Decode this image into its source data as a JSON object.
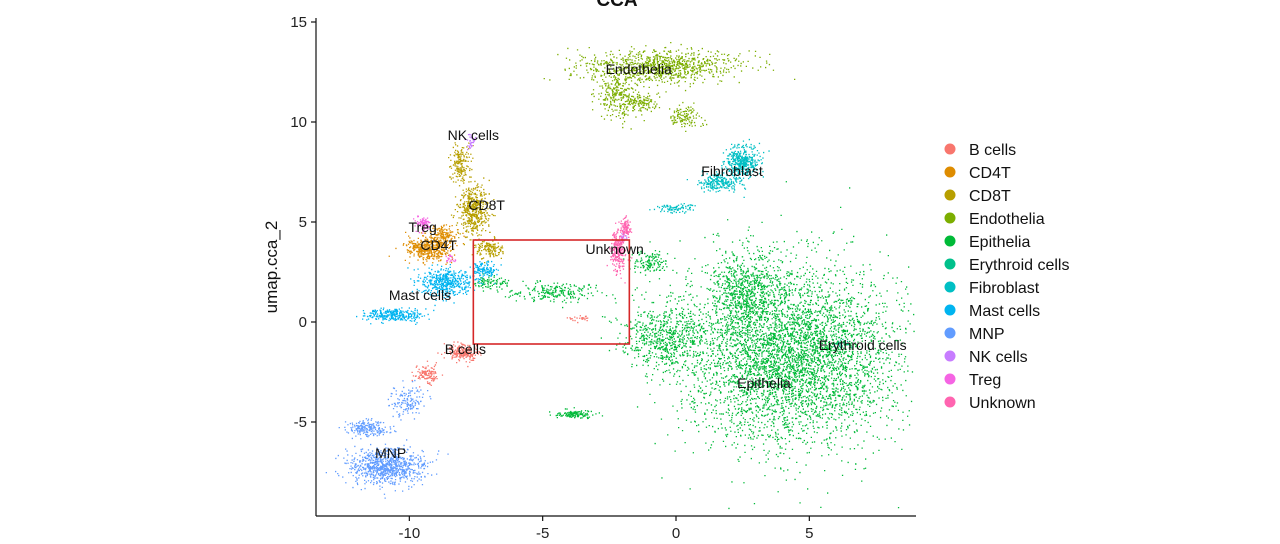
{
  "chart_data": {
    "type": "scatter",
    "title": "CCA",
    "xlabel": "",
    "ylabel": "umap.cca_2",
    "xlim": [
      -13.5,
      9
    ],
    "ylim": [
      -9.7,
      15.2
    ],
    "x_ticks": [
      -10,
      -5,
      0,
      5
    ],
    "y_ticks": [
      -5,
      0,
      5,
      10,
      15
    ],
    "grid": false,
    "legend_position": "right",
    "highlight_box": {
      "x0": -7.6,
      "x1": -1.75,
      "y0": -1.1,
      "y1": 4.1,
      "color": "#d62728"
    },
    "clusters": [
      {
        "name": "B cells",
        "color": "#F8766D",
        "label_pos": [
          -7.9,
          -1.6
        ],
        "blobs": [
          [
            -8.0,
            -1.5,
            0.5,
            0.35,
            220
          ],
          [
            -9.3,
            -2.6,
            0.45,
            0.45,
            120
          ],
          [
            -3.6,
            0.2,
            0.5,
            0.15,
            25
          ]
        ]
      },
      {
        "name": "CD4T",
        "color": "#DE8C00",
        "label_pos": [
          -8.9,
          3.6
        ],
        "blobs": [
          [
            -9.3,
            3.7,
            0.8,
            0.55,
            460
          ],
          [
            -8.7,
            4.4,
            0.45,
            0.4,
            130
          ]
        ]
      },
      {
        "name": "CD8T",
        "color": "#B79F00",
        "label_pos": [
          -7.1,
          5.6
        ],
        "blobs": [
          [
            -7.6,
            5.6,
            0.5,
            1.1,
            480
          ],
          [
            -8.1,
            7.9,
            0.35,
            0.9,
            170
          ],
          [
            -7.0,
            3.7,
            0.45,
            0.45,
            130
          ]
        ]
      },
      {
        "name": "Endothelia",
        "color": "#7CAE00",
        "label_pos": [
          -1.4,
          12.4
        ],
        "blobs": [
          [
            -0.5,
            12.8,
            2.6,
            0.75,
            950
          ],
          [
            -2.2,
            11.4,
            0.7,
            1.1,
            260
          ],
          [
            -1.3,
            11.0,
            0.6,
            0.4,
            120
          ],
          [
            0.3,
            10.3,
            0.55,
            0.5,
            120
          ]
        ]
      },
      {
        "name": "Epithelia",
        "color": "#00BA38",
        "label_pos": [
          3.3,
          -3.3
        ],
        "blobs": [
          [
            4.3,
            -1.7,
            3.6,
            3.9,
            4600
          ],
          [
            2.5,
            1.5,
            1.2,
            2.0,
            700
          ],
          [
            -0.5,
            -0.7,
            1.4,
            1.5,
            600
          ],
          [
            -1.0,
            3.0,
            0.7,
            0.6,
            140
          ],
          [
            -3.8,
            -4.6,
            0.7,
            0.18,
            120
          ],
          [
            -4.6,
            1.5,
            1.6,
            0.4,
            220
          ],
          [
            -7.0,
            2.0,
            0.6,
            0.35,
            80
          ]
        ]
      },
      {
        "name": "Erythroid cells",
        "color": "#00C08B",
        "label_pos": [
          7.0,
          -1.4
        ],
        "blobs": [
          [
            6.2,
            -1.1,
            0.3,
            0.25,
            25
          ]
        ]
      },
      {
        "name": "Fibroblast",
        "color": "#00BFC4",
        "label_pos": [
          2.1,
          7.3
        ],
        "blobs": [
          [
            2.5,
            8.0,
            0.6,
            0.7,
            420
          ],
          [
            1.6,
            7.0,
            0.7,
            0.4,
            230
          ],
          [
            0.0,
            5.7,
            0.6,
            0.2,
            80
          ]
        ]
      },
      {
        "name": "Mast cells",
        "color": "#00B4F0",
        "label_pos": [
          -9.6,
          1.1
        ],
        "blobs": [
          [
            -8.6,
            2.0,
            0.9,
            0.6,
            460
          ],
          [
            -10.6,
            0.4,
            1.0,
            0.28,
            280
          ],
          [
            -7.2,
            2.6,
            0.5,
            0.4,
            120
          ]
        ]
      },
      {
        "name": "MNP",
        "color": "#619CFF",
        "label_pos": [
          -10.7,
          -6.8
        ],
        "blobs": [
          [
            -10.8,
            -7.2,
            1.3,
            0.8,
            850
          ],
          [
            -11.6,
            -5.3,
            0.7,
            0.4,
            200
          ],
          [
            -10.1,
            -3.9,
            0.6,
            0.8,
            140
          ]
        ]
      },
      {
        "name": "NK cells",
        "color": "#C77CFF",
        "label_pos": [
          -7.6,
          9.1
        ],
        "blobs": [
          [
            -7.7,
            9.0,
            0.2,
            0.35,
            35
          ],
          [
            -2.0,
            4.3,
            0.15,
            0.3,
            25
          ]
        ]
      },
      {
        "name": "Treg",
        "color": "#F564E3",
        "label_pos": [
          -9.5,
          4.5
        ],
        "blobs": [
          [
            -9.5,
            4.95,
            0.22,
            0.3,
            90
          ],
          [
            -8.5,
            3.2,
            0.2,
            0.2,
            20
          ]
        ]
      },
      {
        "name": "Unknown",
        "color": "#FF64B0",
        "label_pos": [
          -2.3,
          3.4
        ],
        "blobs": [
          [
            -2.2,
            3.6,
            0.25,
            0.9,
            260
          ],
          [
            -1.9,
            4.8,
            0.15,
            0.35,
            90
          ]
        ]
      }
    ]
  }
}
